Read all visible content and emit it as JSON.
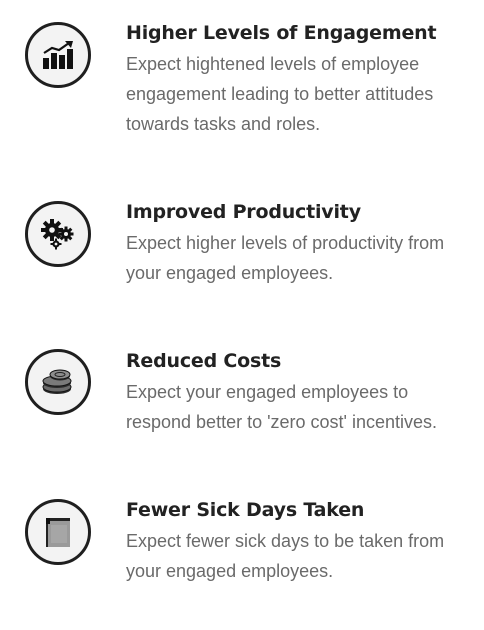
{
  "benefits": [
    {
      "icon": "growth-chart-icon",
      "title": "Higher Levels of Engagement",
      "description_lines": [
        "Expect hightened levels of employee",
        "engagement leading to better attitudes",
        "towards tasks and roles."
      ]
    },
    {
      "icon": "gears-icon",
      "title": "Improved Productivity",
      "description_lines": [
        "Expect higher levels of productivity from",
        "your engaged employees."
      ]
    },
    {
      "icon": "coins-icon",
      "title": "Reduced Costs",
      "description_lines": [
        "Expect your engaged employees to",
        "respond better to 'zero cost' incentives."
      ]
    },
    {
      "icon": "medical-folder-icon",
      "title": "Fewer Sick Days Taken",
      "description_lines": [
        "Expect fewer sick days to be taken from",
        "your engaged employees."
      ]
    }
  ],
  "colors": {
    "title": "#222222",
    "description": "#6a6a6a",
    "icon_border": "#1f1f1f",
    "icon_background": "#f3f3f3"
  }
}
